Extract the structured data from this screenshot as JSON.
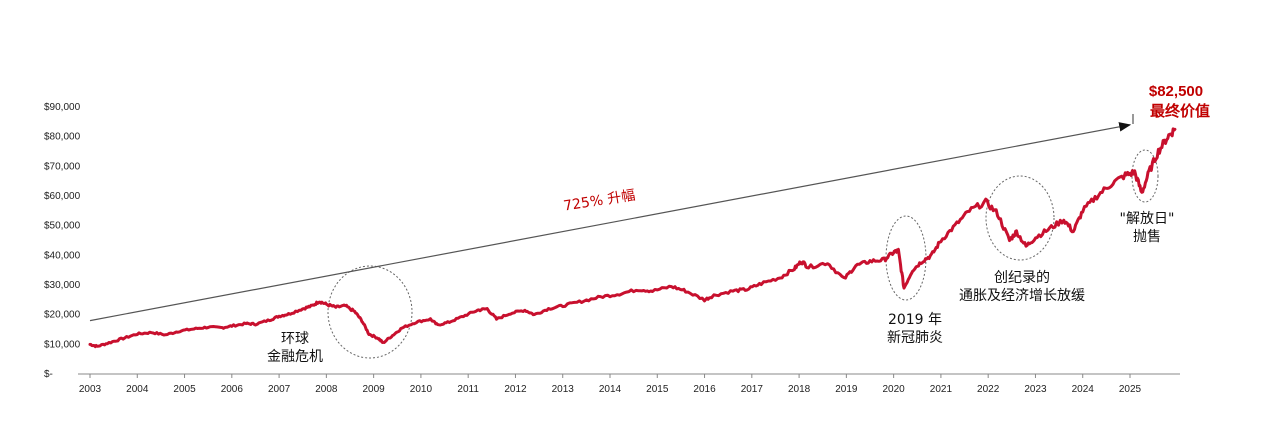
{
  "chart_data": {
    "type": "line",
    "title": "",
    "xlabel": "",
    "ylabel": "",
    "xlim": [
      2003,
      2025.9
    ],
    "ylim": [
      0,
      90000
    ],
    "y_ticks": [
      {
        "value": 0,
        "label": "$-"
      },
      {
        "value": 10000,
        "label": "$10,000"
      },
      {
        "value": 20000,
        "label": "$20,000"
      },
      {
        "value": 30000,
        "label": "$30,000"
      },
      {
        "value": 40000,
        "label": "$40,000"
      },
      {
        "value": 50000,
        "label": "$50,000"
      },
      {
        "value": 60000,
        "label": "$60,000"
      },
      {
        "value": 70000,
        "label": "$70,000"
      },
      {
        "value": 80000,
        "label": "$80,000"
      },
      {
        "value": 90000,
        "label": "$90,000"
      }
    ],
    "x_ticks": [
      "2003",
      "2004",
      "2005",
      "2006",
      "2007",
      "2008",
      "2009",
      "2010",
      "2011",
      "2012",
      "2013",
      "2014",
      "2015",
      "2016",
      "2017",
      "2018",
      "2019",
      "2020",
      "2021",
      "2022",
      "2023",
      "2024",
      "2025"
    ],
    "grid": false,
    "series": [
      {
        "color": "#c8102e",
        "points": [
          [
            2003.0,
            10000
          ],
          [
            2003.15,
            9300
          ],
          [
            2003.4,
            10500
          ],
          [
            2003.7,
            12000
          ],
          [
            2004.0,
            13500
          ],
          [
            2004.3,
            14000
          ],
          [
            2004.6,
            13200
          ],
          [
            2004.9,
            14500
          ],
          [
            2005.2,
            15200
          ],
          [
            2005.5,
            15800
          ],
          [
            2005.8,
            15600
          ],
          [
            2006.0,
            16200
          ],
          [
            2006.3,
            17000
          ],
          [
            2006.5,
            16800
          ],
          [
            2006.8,
            18200
          ],
          [
            2007.0,
            19500
          ],
          [
            2007.2,
            20200
          ],
          [
            2007.5,
            22000
          ],
          [
            2007.7,
            23000
          ],
          [
            2007.85,
            24500
          ],
          [
            2008.0,
            23500
          ],
          [
            2008.2,
            22500
          ],
          [
            2008.4,
            23000
          ],
          [
            2008.6,
            21000
          ],
          [
            2008.75,
            18000
          ],
          [
            2008.9,
            13500
          ],
          [
            2009.1,
            12000
          ],
          [
            2009.2,
            10500
          ],
          [
            2009.4,
            13000
          ],
          [
            2009.6,
            15500
          ],
          [
            2009.9,
            17500
          ],
          [
            2010.2,
            18500
          ],
          [
            2010.35,
            16500
          ],
          [
            2010.6,
            17500
          ],
          [
            2010.9,
            19500
          ],
          [
            2011.2,
            21500
          ],
          [
            2011.4,
            22000
          ],
          [
            2011.6,
            18500
          ],
          [
            2011.9,
            20500
          ],
          [
            2012.2,
            21500
          ],
          [
            2012.4,
            20000
          ],
          [
            2012.7,
            22000
          ],
          [
            2013.0,
            23000
          ],
          [
            2013.4,
            24500
          ],
          [
            2013.8,
            26000
          ],
          [
            2014.2,
            27000
          ],
          [
            2014.6,
            28500
          ],
          [
            2014.9,
            28000
          ],
          [
            2015.3,
            29500
          ],
          [
            2015.6,
            28000
          ],
          [
            2016.0,
            25000
          ],
          [
            2016.2,
            26500
          ],
          [
            2016.6,
            28000
          ],
          [
            2016.9,
            28500
          ],
          [
            2017.2,
            30500
          ],
          [
            2017.6,
            32500
          ],
          [
            2017.9,
            35500
          ],
          [
            2018.05,
            38000
          ],
          [
            2018.2,
            36000
          ],
          [
            2018.6,
            37500
          ],
          [
            2018.95,
            32000
          ],
          [
            2019.2,
            36500
          ],
          [
            2019.5,
            38000
          ],
          [
            2019.8,
            38500
          ],
          [
            2020.0,
            41000
          ],
          [
            2020.1,
            41500
          ],
          [
            2020.22,
            29000
          ],
          [
            2020.4,
            35000
          ],
          [
            2020.6,
            38000
          ],
          [
            2020.8,
            40000
          ],
          [
            2021.0,
            45000
          ],
          [
            2021.3,
            50000
          ],
          [
            2021.6,
            55000
          ],
          [
            2021.95,
            58000
          ],
          [
            2022.2,
            54000
          ],
          [
            2022.45,
            45000
          ],
          [
            2022.6,
            48000
          ],
          [
            2022.8,
            43000
          ],
          [
            2023.0,
            46000
          ],
          [
            2023.3,
            49000
          ],
          [
            2023.6,
            52000
          ],
          [
            2023.8,
            48000
          ],
          [
            2024.0,
            55000
          ],
          [
            2024.3,
            60000
          ],
          [
            2024.6,
            64000
          ],
          [
            2024.9,
            67000
          ],
          [
            2025.1,
            68000
          ],
          [
            2025.25,
            61000
          ],
          [
            2025.4,
            68000
          ],
          [
            2025.6,
            75000
          ],
          [
            2025.8,
            80000
          ],
          [
            2025.95,
            82500
          ]
        ]
      }
    ],
    "annotations": [
      {
        "text": "725% 升幅",
        "x": 2012.3,
        "y": 58000,
        "color": "#c00000"
      },
      {
        "lines": [
          "环球",
          "金融危机"
        ],
        "x": 2007.3,
        "y": 8000
      },
      {
        "lines": [
          "2019 年",
          "新冠肺炎"
        ],
        "x": 2020.4,
        "y": 14000
      },
      {
        "lines": [
          "创纪录的",
          "通胀及经济增长放缓"
        ],
        "x": 2022.5,
        "y": 29000
      },
      {
        "lines": [
          "\"解放日\"",
          "抛售"
        ],
        "x": 2025.35,
        "y": 50000
      }
    ],
    "final_value": {
      "value": "$82,500",
      "label": "最终价值",
      "color": "#c00000"
    },
    "arrow": {
      "from": [
        2003.0,
        18000
      ],
      "to": [
        2025.0,
        84000
      ]
    }
  }
}
